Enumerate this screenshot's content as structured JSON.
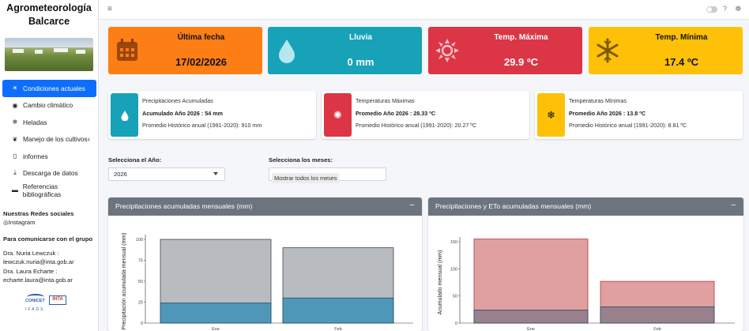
{
  "sidebar": {
    "brand_line1": "Agrometeorología",
    "brand_line2": "Balcarce",
    "nav": [
      {
        "label": "Condiciones actuales",
        "icon": "sun-icon",
        "glyph": "☀",
        "active": true
      },
      {
        "label": "Cambio climático",
        "icon": "globe-icon",
        "glyph": "◉",
        "active": false
      },
      {
        "label": "Heladas",
        "icon": "snowflake-icon",
        "glyph": "❄",
        "active": false
      },
      {
        "label": "Manejo de los cultivos",
        "icon": "seedling-icon",
        "glyph": "❦",
        "active": false,
        "chevron": "‹"
      },
      {
        "label": "informes",
        "icon": "file-icon",
        "glyph": "▯",
        "active": false
      },
      {
        "label": "Descarga de datos",
        "icon": "download-icon",
        "glyph": "⤓",
        "active": false
      },
      {
        "label": "Referencias bibliográficas",
        "icon": "book-icon",
        "glyph": "▬",
        "active": false
      }
    ],
    "social_title": "Nuestras Redes sociales",
    "instagram": "Instagram",
    "contact_title": "Para comunicarse con el grupo",
    "contact1_name": "Dra. Nuria Lewczuk :",
    "contact1_email": "lewczuk.nuria@inta.gob.ar",
    "contact2_name": "Dra. Laura Echarte :",
    "contact2_email": "echarte.laura@inta.gob.ar",
    "logo_conicet": "CONICET",
    "logo_inta": "INTA",
    "logo_ifads": "IFADS"
  },
  "topbar": {
    "menu_glyph": "≡",
    "help_glyph": "?",
    "gear_glyph": "❁"
  },
  "value_boxes": [
    {
      "title": "Última fecha",
      "value": "17/02/2026",
      "icon": "calendar-icon",
      "color": "#fd7e14"
    },
    {
      "title": "Lluvia",
      "value": "0 mm",
      "icon": "droplet-icon",
      "color": "#17a2b8"
    },
    {
      "title": "Temp. Máxima",
      "value": "29.9 ºC",
      "icon": "sun-icon",
      "color": "#dc3545"
    },
    {
      "title": "Temp. Mínima",
      "value": "17.4 ºC",
      "icon": "snowflake-icon",
      "color": "#ffc107"
    }
  ],
  "info_boxes": [
    {
      "title": "Precipitaciones Acumuladas",
      "value": "Acumulado Año 2026 : 54 mm",
      "historic": "Promedio Histórico anual (1991-2020): 910 mm",
      "icon": "droplet-icon",
      "glyph": "💧"
    },
    {
      "title": "Temperaturas Máximas",
      "value": "Promedio Año 2026 : 28.33 ºC",
      "historic": "Promedio Histórico anual (1991-2020): 20.27 ºC",
      "icon": "sun-icon",
      "glyph": "✺"
    },
    {
      "title": "Temperaturas Mínimas",
      "value": "Promedio Año 2026 : 13.8 ºC",
      "historic": "Promedio Histórico anual (1991-2020): 8.81 ºC",
      "icon": "snowflake-icon",
      "glyph": "❄"
    }
  ],
  "controls": {
    "year_label": "Selecciona el Año:",
    "year_value": "2026",
    "months_label": "Selecciona los meses:",
    "months_value": "Mostrar todos los meses"
  },
  "cards": {
    "card1_title": "Precipitaciones acumuladas mensuales (mm)",
    "card2_title": "Precipitaciones y ETo acumuladas mensuales (mm)",
    "collapse_glyph": "–"
  },
  "chart_data": [
    {
      "type": "bar",
      "title": "Precipitaciones acumuladas mensuales (mm)",
      "ylabel": "Precipitación acumulada mensual (mm)",
      "categories": [
        "Ene",
        "Feb"
      ],
      "ylim": [
        0,
        100
      ],
      "yticks": [
        0,
        25,
        50,
        75,
        100
      ],
      "series": [
        {
          "values": [
            100,
            90
          ],
          "color": "#b8bcc0"
        },
        {
          "values": [
            24,
            30
          ],
          "color": "#4f97b8"
        }
      ]
    },
    {
      "type": "bar",
      "title": "Precipitaciones y ETo acumuladas mensuales (mm)",
      "ylabel": "Acumulado mensual (mm)",
      "categories": [
        "Ene",
        "Feb"
      ],
      "ylim": [
        0,
        150
      ],
      "yticks": [
        0,
        50,
        100,
        150
      ],
      "series": [
        {
          "values": [
            155,
            77
          ],
          "color": "#e0a0a0"
        },
        {
          "values": [
            24,
            30
          ],
          "color": "#9a7f8c"
        }
      ]
    }
  ]
}
